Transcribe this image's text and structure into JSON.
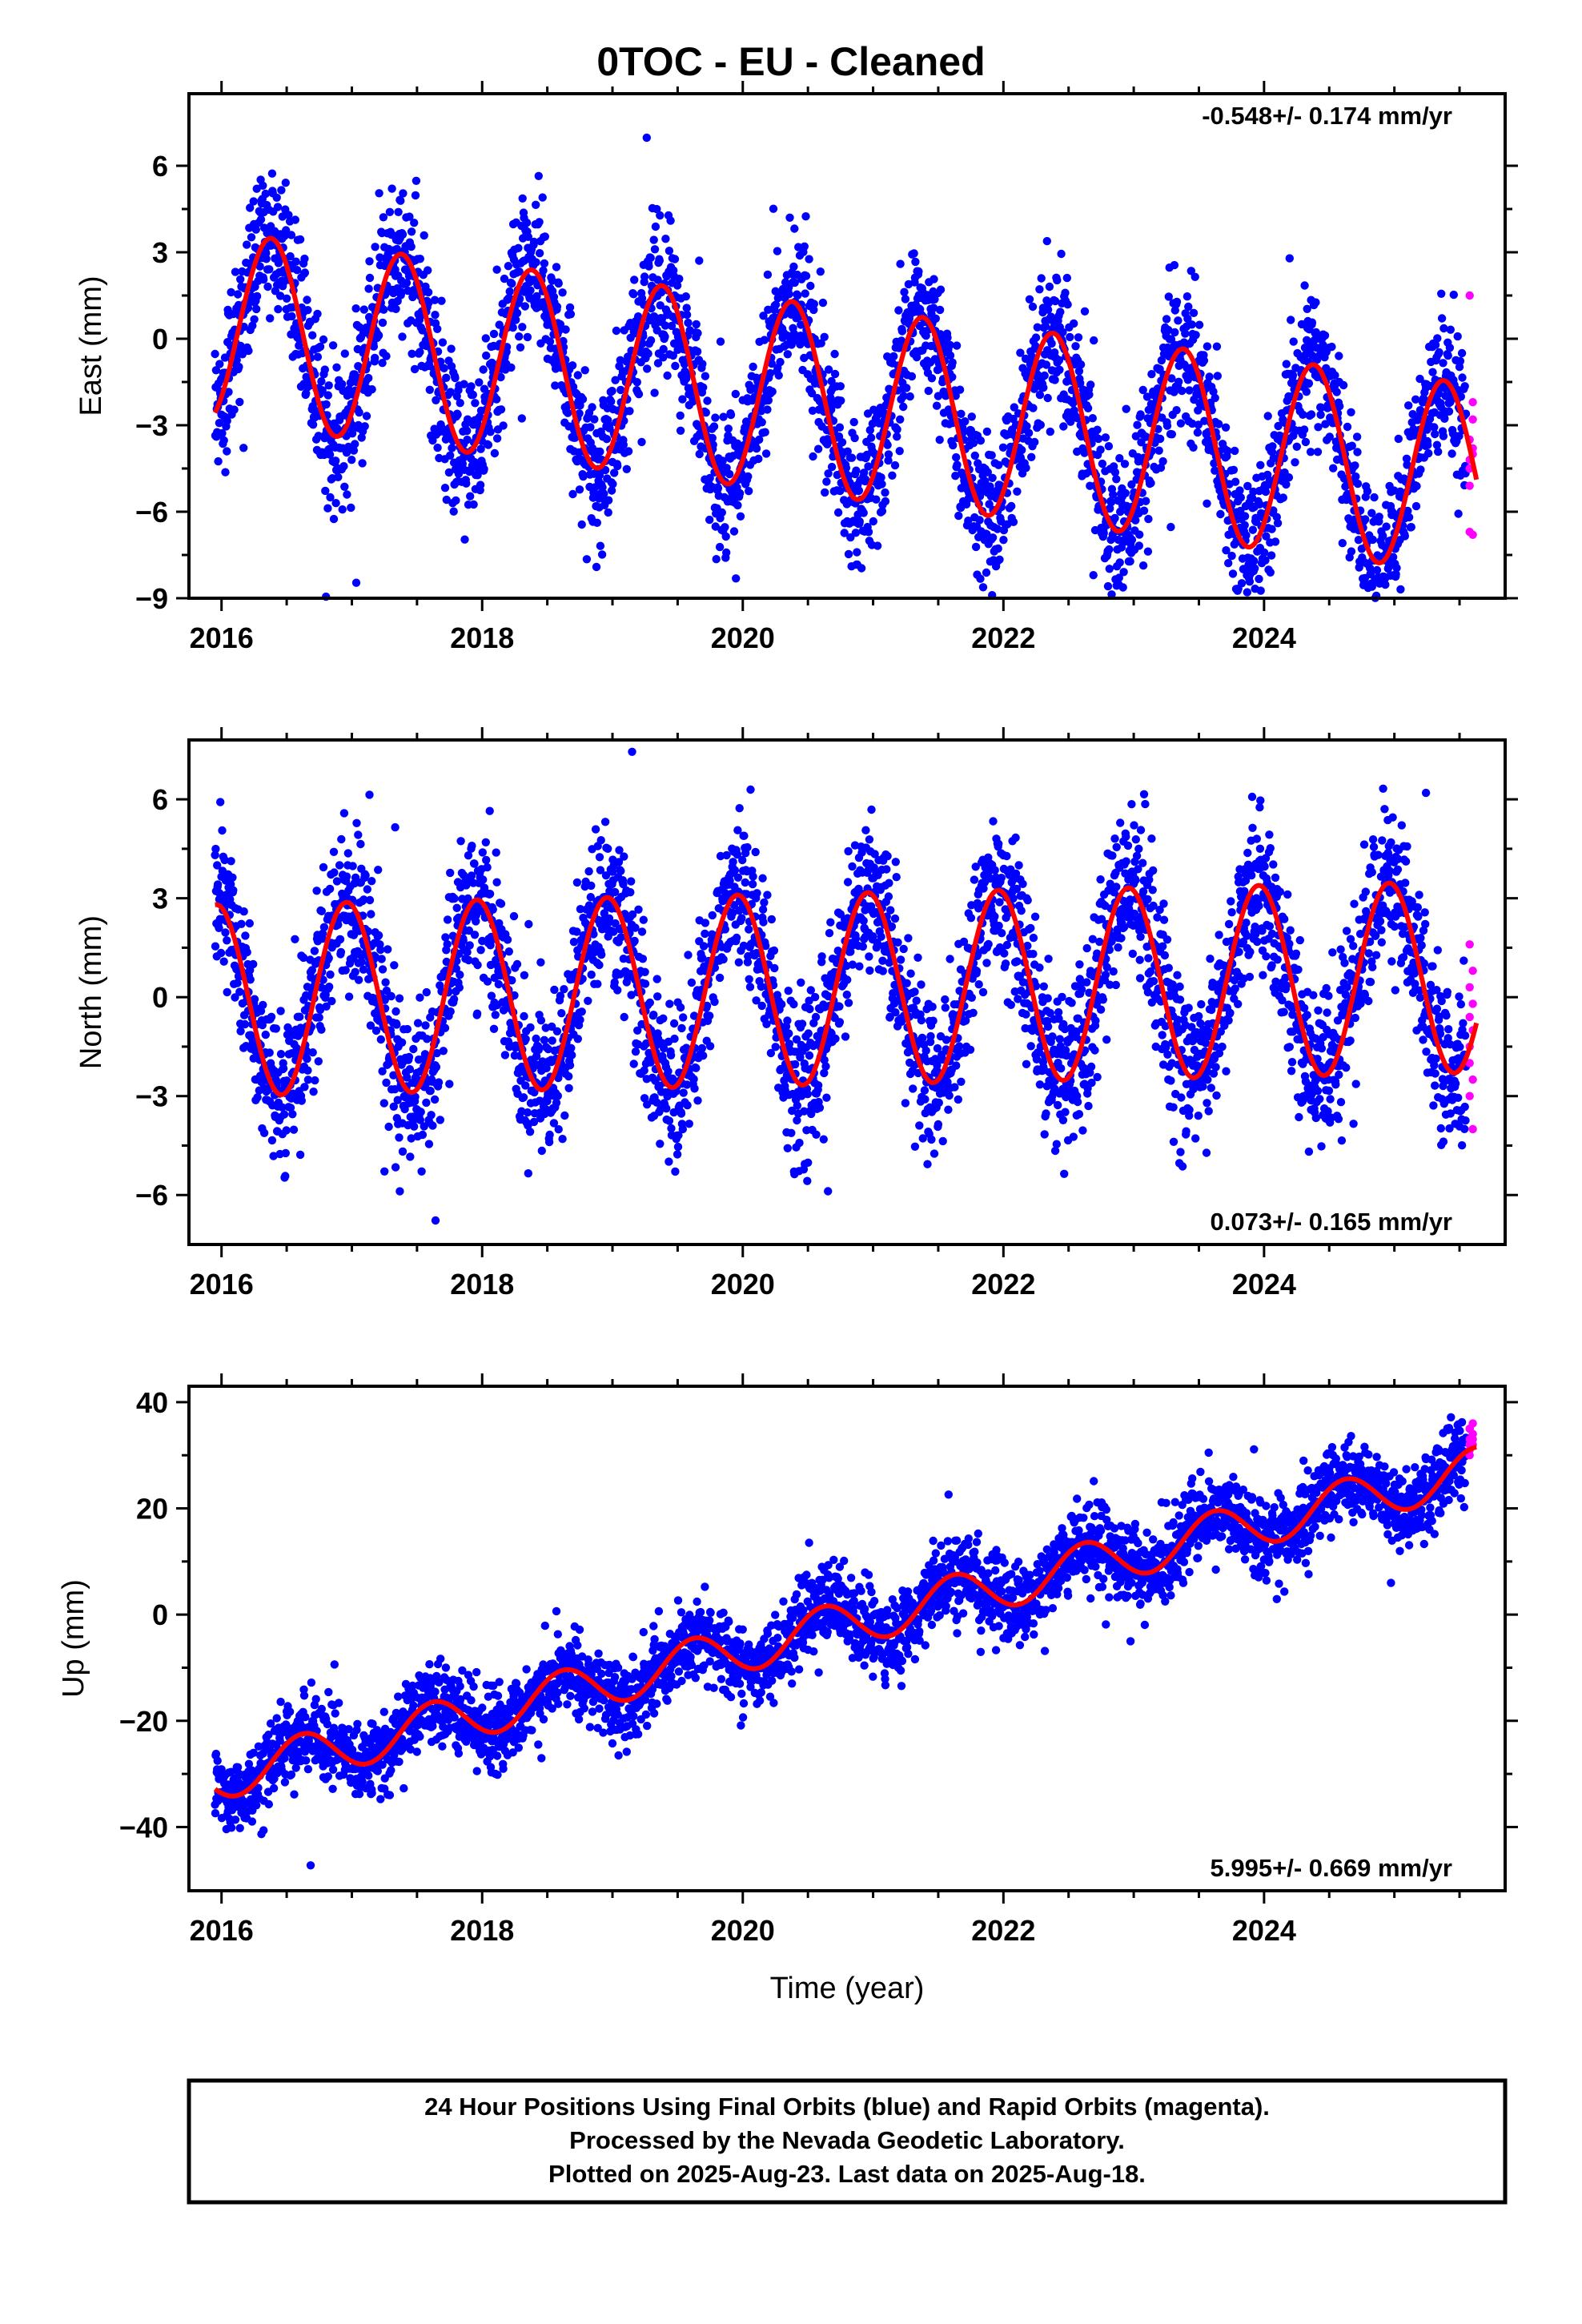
{
  "title": "0TOC  - EU - Cleaned",
  "colors": {
    "final": "#0000ff",
    "rapid": "#ff00ff",
    "model": "#ff0000",
    "frame": "#000000"
  },
  "footer": {
    "line1": "24 Hour Positions Using Final Orbits (blue) and Rapid Orbits (magenta).",
    "line2": "Processed by the Nevada Geodetic Laboratory.",
    "line3": "Plotted on 2025-Aug-23. Last data on 2025-Aug-18."
  },
  "chart_data": [
    {
      "type": "scatter",
      "component": "east",
      "ylabel": "East (mm)",
      "xlabel": "",
      "rate_text": "-0.548+/- 0.174 mm/yr",
      "rate_position": "top-right",
      "xlim": [
        2015.75,
        2025.85
      ],
      "ylim": [
        -9,
        8.5
      ],
      "xticks": [
        2016,
        2018,
        2020,
        2022,
        2024
      ],
      "xtick_labels": [
        "2016",
        "2018",
        "2020",
        "2022",
        "2024"
      ],
      "yticks": [
        -9,
        -6,
        -3,
        0,
        3,
        6
      ],
      "ytick_labels": [
        "−9",
        "−6",
        "−3",
        "0",
        "3",
        "6"
      ],
      "data_start": 2015.95,
      "rapid_start": 2025.55,
      "data_end": 2025.63,
      "model": {
        "offset": -1.8,
        "trend_mm_per_yr": -0.548,
        "t0": 2020.0,
        "amplitude": 3.3,
        "phase_peak_year_fraction": 0.38
      },
      "scatter_sigma": 1.25,
      "series": [
        {
          "name": "Final Orbits (blue)",
          "color": "#0000ff"
        },
        {
          "name": "Rapid Orbits (magenta)",
          "color": "#ff00ff",
          "values": [
            1.5,
            -2.2,
            -3.5,
            -4.0,
            -4.5,
            -6.8,
            -6.7,
            -3.8,
            -4.2,
            -2.8,
            -5.1
          ]
        }
      ]
    },
    {
      "type": "scatter",
      "component": "north",
      "ylabel": "North (mm)",
      "xlabel": "",
      "rate_text": "0.073+/- 0.165 mm/yr",
      "rate_position": "bottom-right",
      "xlim": [
        2015.75,
        2025.85
      ],
      "ylim": [
        -7.5,
        7.8
      ],
      "xticks": [
        2016,
        2018,
        2020,
        2022,
        2024
      ],
      "xtick_labels": [
        "2016",
        "2018",
        "2020",
        "2022",
        "2024"
      ],
      "yticks": [
        -6,
        -3,
        0,
        3,
        6
      ],
      "ytick_labels": [
        "−6",
        "−3",
        "0",
        "3",
        "6"
      ],
      "data_start": 2015.95,
      "rapid_start": 2025.55,
      "data_end": 2025.63,
      "model": {
        "offset": 0.2,
        "trend_mm_per_yr": 0.073,
        "t0": 2020.0,
        "amplitude": 2.9,
        "phase_peak_year_fraction": 0.96
      },
      "scatter_sigma": 1.2,
      "series": [
        {
          "name": "Final Orbits (blue)",
          "color": "#0000ff"
        },
        {
          "name": "Rapid Orbits (magenta)",
          "color": "#ff00ff",
          "values": [
            1.6,
            0.8,
            0.3,
            -0.2,
            -0.6,
            -1.0,
            -1.5,
            -2.5,
            -3.0,
            -4.0,
            -2.0
          ]
        }
      ]
    },
    {
      "type": "scatter",
      "component": "up",
      "ylabel": "Up (mm)",
      "xlabel": "Time (year)",
      "rate_text": "5.995+/- 0.669 mm/yr",
      "rate_position": "bottom-right",
      "xlim": [
        2015.75,
        2025.85
      ],
      "ylim": [
        -52,
        43
      ],
      "xticks": [
        2016,
        2018,
        2020,
        2022,
        2024
      ],
      "xtick_labels": [
        "2016",
        "2018",
        "2020",
        "2022",
        "2024"
      ],
      "yticks": [
        -40,
        -20,
        0,
        20,
        40
      ],
      "ytick_labels": [
        "−40",
        "−20",
        "0",
        "20",
        "40"
      ],
      "data_start": 2015.95,
      "rapid_start": 2025.55,
      "data_end": 2025.63,
      "model": {
        "offset": -6.5,
        "trend_mm_per_yr": 5.995,
        "t0": 2020.0,
        "amplitude": 4.3,
        "phase_peak_year_fraction": 0.62
      },
      "scatter_sigma": 3.6,
      "series": [
        {
          "name": "Final Orbits (blue)",
          "color": "#0000ff"
        },
        {
          "name": "Rapid Orbits (magenta)",
          "color": "#ff00ff",
          "values": [
            30,
            32,
            33,
            34,
            35,
            36,
            31,
            33,
            35,
            34,
            32
          ]
        }
      ]
    }
  ]
}
